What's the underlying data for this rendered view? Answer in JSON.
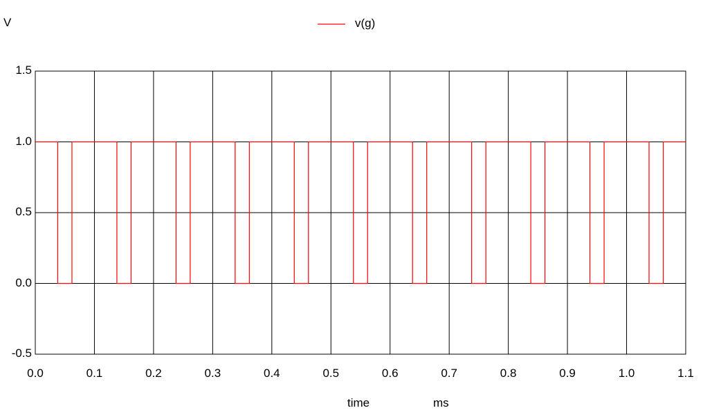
{
  "chart_data": {
    "type": "line",
    "ylabel": "V",
    "xlabel": "time",
    "xunit": "ms",
    "xlim": [
      0.0,
      1.1
    ],
    "ylim": [
      -0.5,
      1.5
    ],
    "xticks": [
      "0.0",
      "0.1",
      "0.2",
      "0.3",
      "0.4",
      "0.5",
      "0.6",
      "0.7",
      "0.8",
      "0.9",
      "1.0",
      "1.1"
    ],
    "yticks": [
      "1.5",
      "1.0",
      "0.5",
      "0.0",
      "-0.5"
    ],
    "grid": true,
    "legend": "top-center",
    "series": [
      {
        "name": "v(g)",
        "color": "#ff0000",
        "period": 0.1,
        "high": 1.0,
        "low": 0.0,
        "x": [
          0.0,
          0.038,
          0.038,
          0.062,
          0.062,
          0.138,
          0.138,
          0.162,
          0.162,
          0.238,
          0.238,
          0.262,
          0.262,
          0.338,
          0.338,
          0.362,
          0.362,
          0.438,
          0.438,
          0.462,
          0.462,
          0.538,
          0.538,
          0.562,
          0.562,
          0.638,
          0.638,
          0.662,
          0.662,
          0.738,
          0.738,
          0.762,
          0.762,
          0.838,
          0.838,
          0.862,
          0.862,
          0.938,
          0.938,
          0.962,
          0.962,
          1.038,
          1.038,
          1.062,
          1.062,
          1.1
        ],
        "y": [
          1,
          1,
          0,
          0,
          1,
          1,
          0,
          0,
          1,
          1,
          0,
          0,
          1,
          1,
          0,
          0,
          1,
          1,
          0,
          0,
          1,
          1,
          0,
          0,
          1,
          1,
          0,
          0,
          1,
          1,
          0,
          0,
          1,
          1,
          0,
          0,
          1,
          1,
          0,
          0,
          1,
          1,
          0,
          0,
          1,
          1
        ]
      }
    ]
  }
}
